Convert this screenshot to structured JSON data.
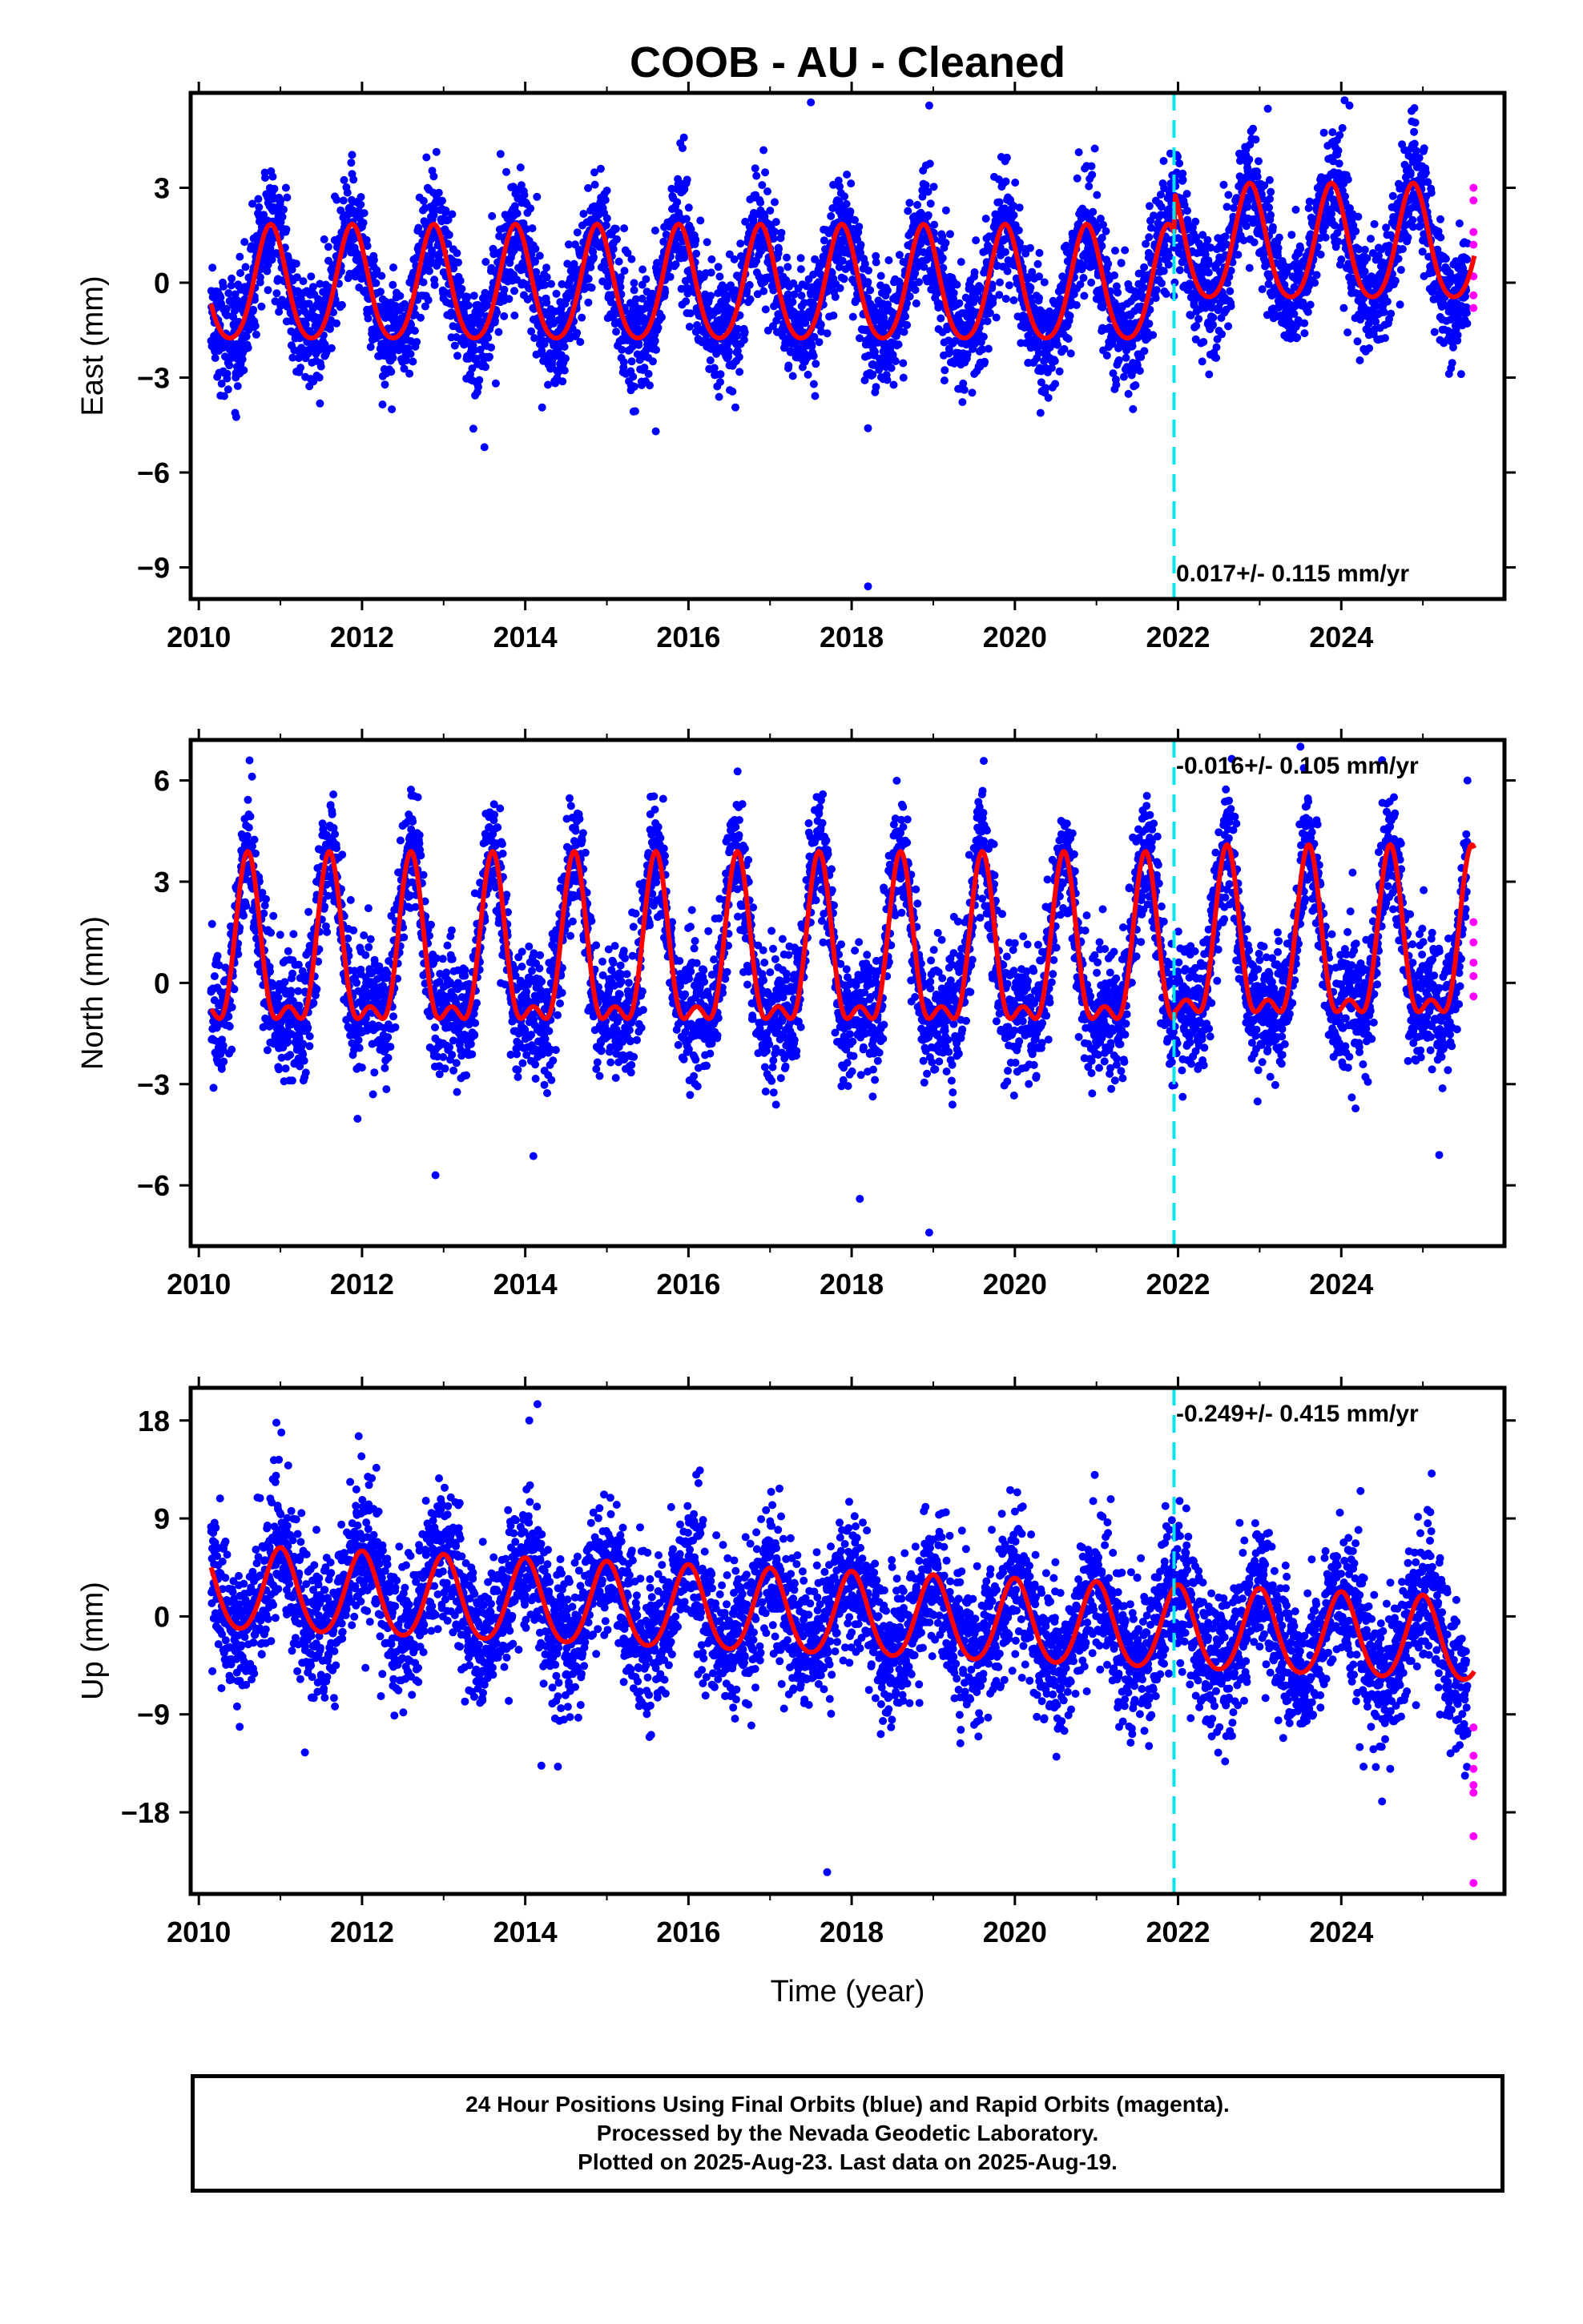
{
  "title": "COOB  - AU - Cleaned",
  "footer": {
    "line1": "24 Hour Positions Using Final Orbits (blue) and Rapid Orbits (magenta).",
    "line2": "Processed by the Nevada Geodetic Laboratory.",
    "line3": "Plotted on 2025-Aug-23. Last data on 2025-Aug-19."
  },
  "colors": {
    "final_orbits": "#0000ff",
    "rapid_orbits": "#ff00ff",
    "model_fit": "#ff0000",
    "event_line": "#00e5ee"
  },
  "chart_data": [
    {
      "type": "scatter",
      "name": "east",
      "title": "COOB  - AU - Cleaned",
      "xlabel": "",
      "ylabel": "East (mm)",
      "xlim": [
        2009.9,
        2026.0
      ],
      "ylim": [
        -10.0,
        6.0
      ],
      "xticks": [
        2010,
        2012,
        2014,
        2016,
        2018,
        2020,
        2022,
        2024
      ],
      "xtick_labels": [
        "2010",
        "2012",
        "2014",
        "2016",
        "2018",
        "2020",
        "2022",
        "2024"
      ],
      "yticks": [
        3,
        0,
        -3,
        -6,
        -9
      ],
      "ytick_labels": [
        "3",
        "0",
        "−3",
        "−6",
        "−9"
      ],
      "rate_label": "0.017+/- 0.115 mm/yr",
      "event_line_x": 2021.95,
      "data_span": [
        2010.15,
        2025.55
      ],
      "rapid_span": [
        2025.56,
        2025.63
      ],
      "seasonal_fit": {
        "offset_early": -0.2,
        "offset_late": 1.1,
        "step_year": 2021.95,
        "annual_amp": 1.8,
        "annual_peak": 2010.88,
        "semiannual_amp": 0.25,
        "noise_sd": 0.9
      },
      "rapid_points": [
        {
          "x": 2025.62,
          "y": 3.0
        },
        {
          "x": 2025.62,
          "y": 2.6
        },
        {
          "x": 2025.62,
          "y": 1.6
        },
        {
          "x": 2025.62,
          "y": 1.2
        },
        {
          "x": 2025.62,
          "y": 0.2
        },
        {
          "x": 2025.62,
          "y": -0.4
        },
        {
          "x": 2025.62,
          "y": -0.8
        }
      ],
      "outliers": [
        {
          "x": 2017.5,
          "y": 5.7
        },
        {
          "x": 2018.95,
          "y": 5.6
        },
        {
          "x": 2023.1,
          "y": 5.5
        },
        {
          "x": 2024.1,
          "y": 5.6
        },
        {
          "x": 2018.2,
          "y": -9.6
        },
        {
          "x": 2013.5,
          "y": -5.2
        },
        {
          "x": 2018.2,
          "y": -4.6
        },
        {
          "x": 2015.6,
          "y": -4.7
        }
      ]
    },
    {
      "type": "scatter",
      "name": "north",
      "title": "",
      "xlabel": "",
      "ylabel": "North (mm)",
      "xlim": [
        2009.9,
        2026.0
      ],
      "ylim": [
        -7.8,
        7.2
      ],
      "xticks": [
        2010,
        2012,
        2014,
        2016,
        2018,
        2020,
        2022,
        2024
      ],
      "xtick_labels": [
        "2010",
        "2012",
        "2014",
        "2016",
        "2018",
        "2020",
        "2022",
        "2024"
      ],
      "yticks": [
        6,
        3,
        0,
        -3,
        -6
      ],
      "ytick_labels": [
        "6",
        "3",
        "0",
        "−3",
        "−6"
      ],
      "rate_label": "-0.016+/- 0.105 mm/yr",
      "event_line_x": 2021.95,
      "data_span": [
        2010.15,
        2025.55
      ],
      "rapid_span": [
        2025.56,
        2025.63
      ],
      "seasonal_fit": {
        "offset_early": 0.6,
        "offset_late": 0.8,
        "step_year": 2021.95,
        "annual_amp": 2.3,
        "annual_peak": 2010.6,
        "semiannual_amp": 1.0,
        "noise_sd": 0.9
      },
      "rapid_points": [
        {
          "x": 2025.62,
          "y": 1.8
        },
        {
          "x": 2025.62,
          "y": 1.2
        },
        {
          "x": 2025.62,
          "y": 0.6
        },
        {
          "x": 2025.62,
          "y": 0.2
        },
        {
          "x": 2025.62,
          "y": -0.4
        }
      ],
      "outliers": [
        {
          "x": 2018.1,
          "y": -6.4
        },
        {
          "x": 2018.95,
          "y": -7.4
        },
        {
          "x": 2012.9,
          "y": -5.7
        },
        {
          "x": 2023.5,
          "y": 7.0
        },
        {
          "x": 2024.5,
          "y": 6.6
        },
        {
          "x": 2025.2,
          "y": -5.1
        }
      ]
    },
    {
      "type": "scatter",
      "name": "up",
      "title": "",
      "xlabel": "Time (year)",
      "ylabel": "Up (mm)",
      "xlim": [
        2009.9,
        2026.0
      ],
      "ylim": [
        -25.5,
        21.0
      ],
      "xticks": [
        2010,
        2012,
        2014,
        2016,
        2018,
        2020,
        2022,
        2024
      ],
      "xtick_labels": [
        "2010",
        "2012",
        "2014",
        "2016",
        "2018",
        "2020",
        "2022",
        "2024"
      ],
      "yticks": [
        18,
        9,
        0,
        -9,
        -18
      ],
      "ytick_labels": [
        "18",
        "9",
        "0",
        "−9",
        "−18"
      ],
      "rate_label": "-0.249+/- 0.415 mm/yr",
      "event_line_x": 2021.95,
      "data_span": [
        2010.15,
        2025.55
      ],
      "rapid_span": [
        2025.56,
        2025.63
      ],
      "seasonal_fit": {
        "offset_start": 2.4,
        "offset_end": -2.4,
        "annual_amp": 3.8,
        "annual_peak": 2011.0,
        "semiannual_amp": 0.4,
        "noise_sd": 3.2
      },
      "rapid_points": [
        {
          "x": 2025.62,
          "y": -10.2
        },
        {
          "x": 2025.62,
          "y": -12.8
        },
        {
          "x": 2025.62,
          "y": -14.0
        },
        {
          "x": 2025.62,
          "y": -15.5
        },
        {
          "x": 2025.62,
          "y": -16.2
        },
        {
          "x": 2025.62,
          "y": -20.2
        },
        {
          "x": 2025.62,
          "y": -24.5
        }
      ],
      "outliers": [
        {
          "x": 2014.15,
          "y": 19.5
        },
        {
          "x": 2014.05,
          "y": 18.0
        },
        {
          "x": 2010.95,
          "y": 17.8
        },
        {
          "x": 2017.7,
          "y": -23.5
        },
        {
          "x": 2014.4,
          "y": -13.8
        },
        {
          "x": 2011.3,
          "y": -12.5
        },
        {
          "x": 2024.5,
          "y": -17.0
        },
        {
          "x": 2024.6,
          "y": -14.0
        }
      ]
    }
  ]
}
